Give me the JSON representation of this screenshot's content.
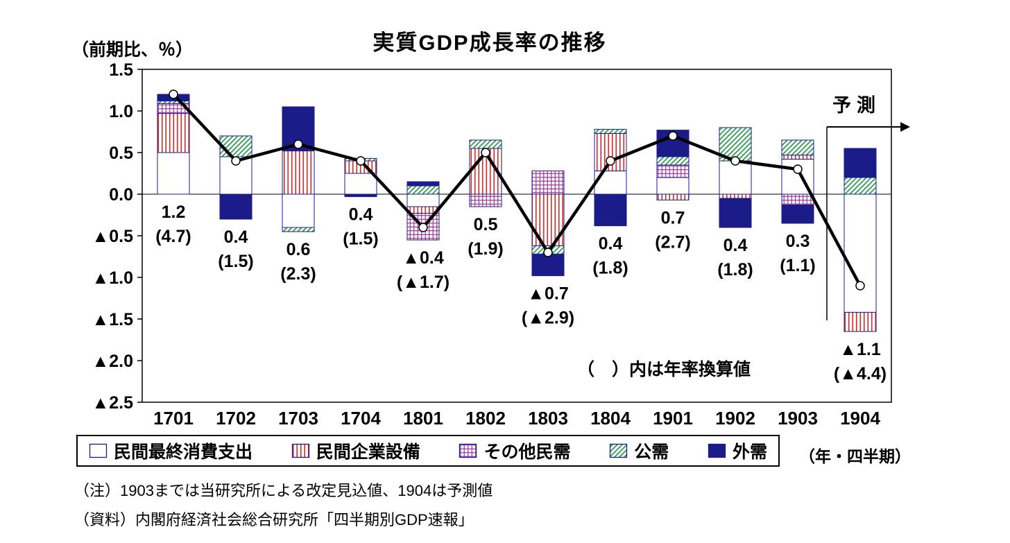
{
  "title": "実質GDP成長率の推移",
  "y_axis_unit": "（前期比、％）",
  "x_axis_unit": "（年・四半期）",
  "notes": [
    "（注）1903までは当研究所による改定見込値、1904は予測値",
    "（資料）内閣府経済社会総合研究所「四半期別GDP速報」"
  ],
  "colors": {
    "navy": "#1B1B8A",
    "red": "#CC3333",
    "purple": "#993399",
    "green": "#2E9E50",
    "line": "#000000",
    "background": "#FFFFFF"
  },
  "chart_data": {
    "type": "bar",
    "subtype": "stacked-bars-with-line",
    "title": "実質GDP成長率の推移",
    "categories": [
      "1701",
      "1702",
      "1703",
      "1704",
      "1801",
      "1802",
      "1803",
      "1804",
      "1901",
      "1902",
      "1903",
      "1904"
    ],
    "ylim": [
      -2.5,
      1.5
    ],
    "y_tick_step": 0.5,
    "y_tick_labels": [
      "1.5",
      "1.0",
      "0.5",
      "0.0",
      "▲0.5",
      "▲1.0",
      "▲1.5",
      "▲2.0",
      "▲2.5"
    ],
    "grid": false,
    "legend_position": "bottom",
    "series": [
      {
        "name": "民間最終消費支出",
        "pattern": "white",
        "values": [
          0.5,
          0.45,
          -0.4,
          0.25,
          -0.15,
          0.0,
          0.0,
          0.28,
          0.2,
          0.4,
          0.42,
          -1.42
        ]
      },
      {
        "name": "民間企業設備",
        "pattern": "red-vertical-stripes",
        "values": [
          0.47,
          0.0,
          0.52,
          0.15,
          -0.08,
          0.55,
          -0.62,
          0.45,
          -0.07,
          -0.05,
          0.05,
          -0.23
        ]
      },
      {
        "name": "その他民需",
        "pattern": "purple-grid",
        "values": [
          0.12,
          0.0,
          0.0,
          0.0,
          -0.32,
          -0.15,
          0.28,
          0.0,
          0.15,
          0.0,
          -0.13,
          0.0
        ]
      },
      {
        "name": "公需",
        "pattern": "green-diagonal-stripes",
        "values": [
          0.03,
          0.25,
          -0.05,
          0.03,
          0.1,
          0.1,
          -0.1,
          0.05,
          0.1,
          0.4,
          0.18,
          0.2
        ]
      },
      {
        "name": "外需",
        "pattern": "navy-solid",
        "values": [
          0.08,
          -0.3,
          0.53,
          -0.03,
          0.05,
          0.0,
          -0.26,
          -0.38,
          0.32,
          -0.35,
          -0.22,
          0.35
        ]
      }
    ],
    "line": {
      "values": [
        1.2,
        0.4,
        0.6,
        0.4,
        -0.4,
        0.5,
        -0.7,
        0.4,
        0.7,
        0.4,
        0.3,
        -1.1
      ],
      "value_labels": [
        "1.2",
        "0.4",
        "0.6",
        "0.4",
        "▲0.4",
        "0.5",
        "▲0.7",
        "0.4",
        "0.7",
        "0.4",
        "0.3",
        "▲1.1"
      ],
      "annualized_labels": [
        "(4.7)",
        "(1.5)",
        "(2.3)",
        "(1.5)",
        "(▲1.7)",
        "(1.9)",
        "(▲2.9)",
        "(1.8)",
        "(2.7)",
        "(1.8)",
        "(1.1)",
        "(▲4.4)"
      ]
    },
    "forecast_label": "予測",
    "annotation": "（　）内は年率換算値"
  }
}
